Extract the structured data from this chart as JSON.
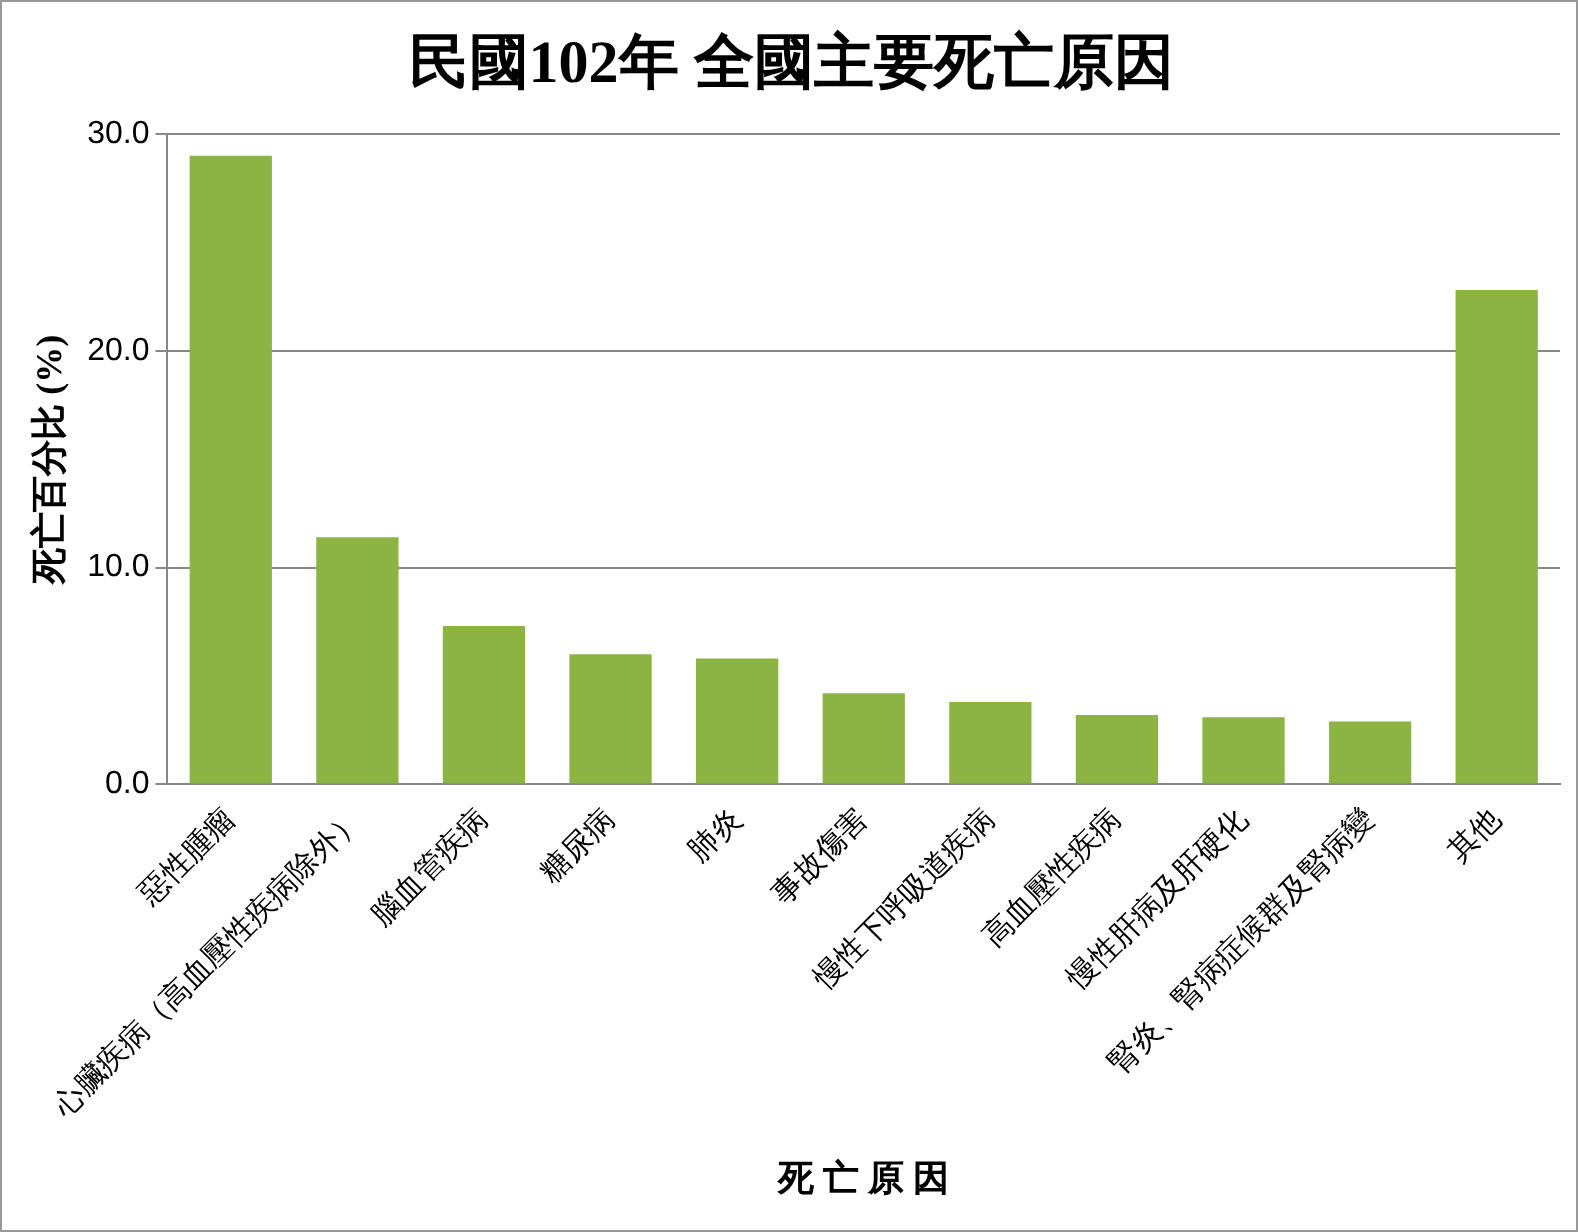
{
  "chart_data": {
    "type": "bar",
    "title": "民國102年 全國主要死亡原因",
    "xlabel": "死 亡 原 因",
    "ylabel": "死亡百分比 (%)",
    "categories": [
      "惡性腫瘤",
      "心臟疾病（高血壓性疾病除外）",
      "腦血管疾病",
      "糖尿病",
      "肺炎",
      "事故傷害",
      "慢性下呼吸道疾病",
      "高血壓性疾病",
      "慢性肝病及肝硬化",
      "腎炎、腎病症候群及腎病變",
      "其他"
    ],
    "values": [
      29.0,
      11.4,
      7.3,
      6.0,
      5.8,
      4.2,
      3.8,
      3.2,
      3.1,
      2.9,
      22.8
    ],
    "color": "#8cb443",
    "ylim": [
      0,
      30
    ],
    "yticks": [
      {
        "value": 0,
        "label": "0.0"
      },
      {
        "value": 10,
        "label": "10.0"
      },
      {
        "value": 20,
        "label": "20.0"
      },
      {
        "value": 30,
        "label": "30.0"
      }
    ],
    "grid": "y",
    "legend": false
  }
}
